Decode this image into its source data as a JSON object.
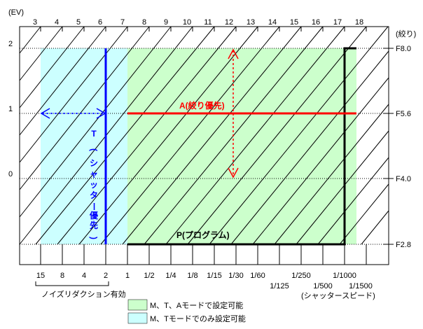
{
  "diagram": {
    "ev_label": "(EV)",
    "aperture_axis_label": "(絞り)",
    "shutter_axis_label": "(シャッタースピード)",
    "ev_ticks": [
      "3",
      "4",
      "5",
      "6",
      "7",
      "8",
      "9",
      "10",
      "11",
      "12",
      "13",
      "14",
      "15",
      "16",
      "17",
      "18"
    ],
    "left_axis_ticks": [
      "2",
      "1",
      "0"
    ],
    "aperture_ticks": [
      "F8.0",
      "F5.6",
      "F4.0",
      "F2.8"
    ],
    "shutter_ticks_row1": [
      "15",
      "8",
      "4",
      "2",
      "1",
      "1/2",
      "1/4",
      "1/8",
      "1/15",
      "1/30",
      "1/60",
      "1/250",
      "1/1000"
    ],
    "shutter_ticks_row2": [
      "1/125",
      "1/500",
      "1/1500"
    ],
    "a_mode_label": "A(絞り優先)",
    "t_mode_label_chars": [
      "T",
      "(",
      "シ",
      "ャ",
      "ッ",
      "タ",
      "ー",
      "優",
      "先",
      ")"
    ],
    "p_mode_label": "P(プログラム)",
    "noise_reduction_label": "ノイズリダクション有効",
    "legend": [
      {
        "label": "M、T、Aモードで設定可能",
        "color": "#ccffcc"
      },
      {
        "label": "M、Tモードでのみ設定可能",
        "color": "#ccffff"
      }
    ],
    "colors": {
      "t_line": "#0000ff",
      "a_line": "#ff0000",
      "p_line": "#000000",
      "grid": "#000000",
      "green_zone": "#ccffcc",
      "cyan_zone": "#ccffff"
    }
  }
}
